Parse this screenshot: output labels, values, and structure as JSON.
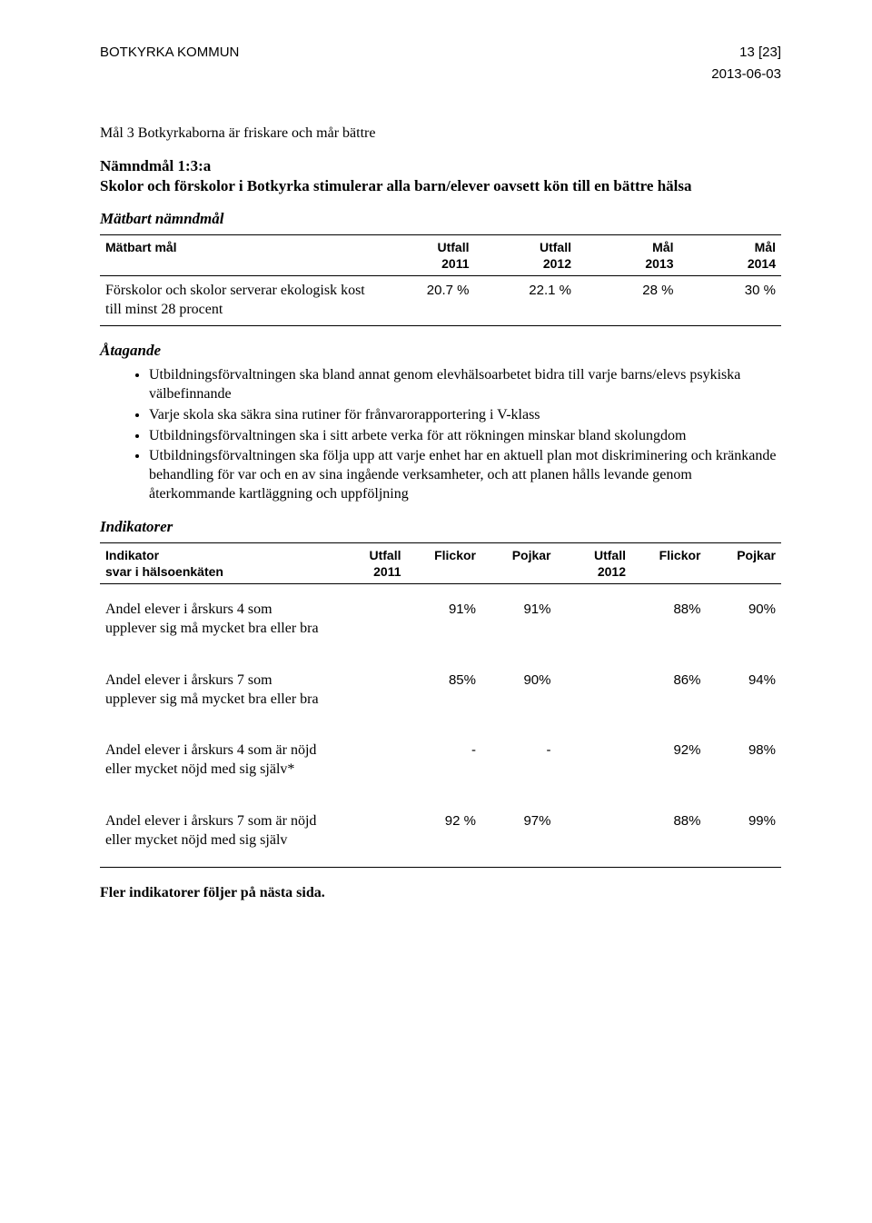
{
  "header": {
    "org": "BOTKYRKA KOMMUN",
    "page": "13 [23]",
    "date": "2013-06-03"
  },
  "mal_heading": "Mål 3 Botkyrkaborna är friskare och mår bättre",
  "namnd": {
    "title": "Nämndmål 1:3:a",
    "desc": "Skolor och förskolor i Botkyrka stimulerar alla barn/elever oavsett kön till en bättre hälsa"
  },
  "matbart_heading": "Mätbart nämndmål",
  "table1": {
    "header": [
      "Mätbart mål",
      "Utfall\n2011",
      "Utfall\n2012",
      "Mål\n2013",
      "Mål\n2014"
    ],
    "row": {
      "label": "Förskolor och skolor serverar ekologisk kost till minst 28 procent",
      "c1": "20.7 %",
      "c2": "22.1 %",
      "c3": "28 %",
      "c4": "30 %"
    },
    "col_align": [
      "left",
      "right",
      "right",
      "right",
      "right"
    ]
  },
  "atagande_heading": "Åtagande",
  "atagande": [
    "Utbildningsförvaltningen ska bland annat genom elevhälsoarbetet bidra till varje barns/elevs psykiska välbefinnande",
    "Varje skola ska säkra sina rutiner för frånvarorapportering i V-klass",
    "Utbildningsförvaltningen ska i sitt arbete verka för att rökningen minskar bland skolungdom",
    "Utbildningsförvaltningen ska följa upp att varje enhet har en aktuell plan mot diskriminering och kränkande behandling för var och en av sina ingående verksamheter, och att planen hålls levande genom återkommande kartläggning och uppföljning"
  ],
  "indikatorer_heading": "Indikatorer",
  "table2": {
    "header": [
      "Indikator\nsvar i hälsoenkäten",
      "Utfall\n2011",
      "Flickor",
      "Pojkar",
      "Utfall\n2012",
      "Flickor",
      "Pojkar"
    ],
    "rows": [
      {
        "label": "Andel elever i årskurs 4 som upplever sig må mycket bra eller bra",
        "c1": "",
        "c2": "91%",
        "c3": "91%",
        "c4": "",
        "c5": "88%",
        "c6": "90%"
      },
      {
        "label": "Andel elever i årskurs 7 som upplever sig må mycket bra eller bra",
        "c1": "",
        "c2": "85%",
        "c3": "90%",
        "c4": "",
        "c5": "86%",
        "c6": "94%"
      },
      {
        "label": "Andel elever i årskurs 4 som är nöjd eller mycket nöjd med sig själv*",
        "c1": "",
        "c2": "-",
        "c3": "-",
        "c4": "",
        "c5": "92%",
        "c6": "98%"
      },
      {
        "label": "Andel elever i årskurs 7 som är nöjd eller mycket nöjd med sig själv",
        "c1": "",
        "c2": "92 %",
        "c3": "97%",
        "c4": "",
        "c5": "88%",
        "c6": "99%"
      }
    ],
    "col_align": [
      "left",
      "right",
      "right",
      "right",
      "right",
      "right",
      "right"
    ]
  },
  "footnote": "Fler indikatorer följer på nästa sida."
}
